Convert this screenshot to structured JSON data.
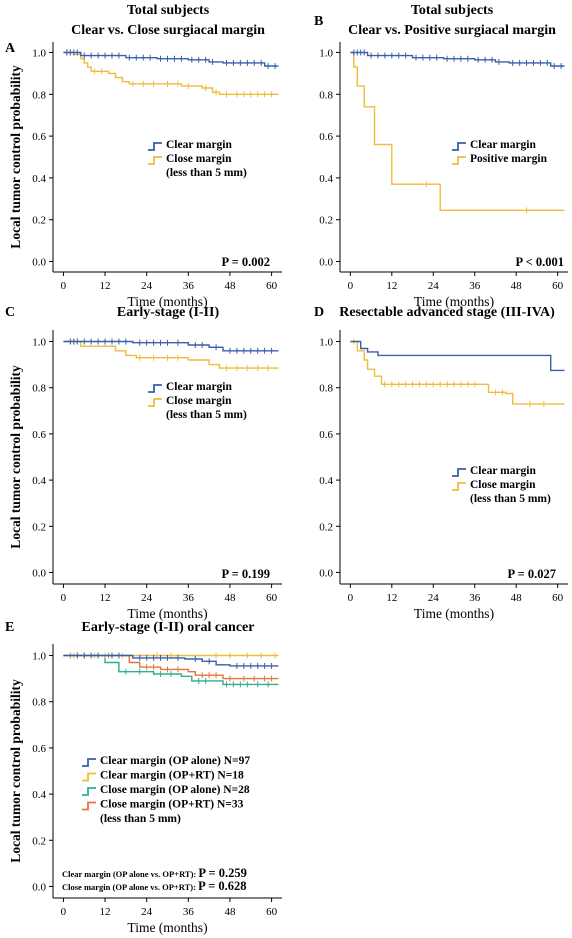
{
  "y_axis_label": "Local tumor control probability",
  "colors": {
    "blue": "#3a5fa8",
    "yellow": "#f0bc3c",
    "teal": "#2fae93",
    "orange": "#e8733c"
  },
  "chart_data": [
    {
      "id": "A",
      "panel": "A",
      "type": "line",
      "step": true,
      "title": "Total subjects",
      "subtitle": "Clear vs. Close surgiacal margin",
      "xlabel": "Time (months)",
      "xlim": [
        -3,
        63
      ],
      "ylim": [
        -0.05,
        1.05
      ],
      "xticks": [
        "0",
        "12",
        "24",
        "36",
        "48",
        "60"
      ],
      "yticks": [
        "0.0",
        "0.2",
        "0.4",
        "0.6",
        "0.8",
        "1.0"
      ],
      "legend": [
        "Clear margin",
        "Close margin",
        "(less than 5 mm)"
      ],
      "pvalue": "P = 0.002",
      "series": [
        {
          "name": "Clear margin",
          "color": "blue",
          "points": [
            [
              0,
              1
            ],
            [
              5,
              0.985
            ],
            [
              18,
              0.975
            ],
            [
              27,
              0.97
            ],
            [
              36,
              0.965
            ],
            [
              42,
              0.955
            ],
            [
              46,
              0.95
            ],
            [
              58,
              0.935
            ],
            [
              62,
              0.935
            ]
          ],
          "censors": [
            1,
            2,
            3,
            4,
            6,
            8,
            10,
            12,
            14,
            16,
            19,
            21,
            23,
            25,
            28,
            30,
            32,
            34,
            37,
            39,
            41,
            43,
            47,
            49,
            51,
            53,
            55,
            57,
            59,
            61
          ]
        },
        {
          "name": "Close margin",
          "color": "yellow",
          "points": [
            [
              0,
              1
            ],
            [
              3,
              0.99
            ],
            [
              5,
              0.97
            ],
            [
              6,
              0.95
            ],
            [
              7,
              0.93
            ],
            [
              8,
              0.91
            ],
            [
              13,
              0.9
            ],
            [
              15,
              0.88
            ],
            [
              17,
              0.86
            ],
            [
              19,
              0.85
            ],
            [
              34,
              0.84
            ],
            [
              40,
              0.83
            ],
            [
              43,
              0.81
            ],
            [
              45,
              0.8
            ],
            [
              48,
              0.8
            ],
            [
              62,
              0.8
            ]
          ],
          "censors": [
            1,
            2,
            9,
            11,
            20,
            23,
            26,
            30,
            33,
            36,
            41,
            44,
            47,
            50,
            52,
            54,
            56,
            58,
            60
          ]
        }
      ]
    },
    {
      "id": "B",
      "panel": "B",
      "type": "line",
      "step": true,
      "title": "Total subjects",
      "subtitle": "Clear vs. Positive surgiacal margin",
      "xlabel": "Time (months)",
      "xlim": [
        -3,
        63
      ],
      "ylim": [
        -0.05,
        1.05
      ],
      "xticks": [
        "0",
        "12",
        "24",
        "36",
        "48",
        "60"
      ],
      "yticks": [
        "0.0",
        "0.2",
        "0.4",
        "0.6",
        "0.8",
        "1.0"
      ],
      "legend": [
        "Clear margin",
        "Positive margin"
      ],
      "pvalue": "P < 0.001",
      "series": [
        {
          "name": "Clear margin",
          "color": "blue",
          "points": [
            [
              0,
              1
            ],
            [
              5,
              0.985
            ],
            [
              18,
              0.975
            ],
            [
              27,
              0.97
            ],
            [
              36,
              0.965
            ],
            [
              42,
              0.955
            ],
            [
              46,
              0.95
            ],
            [
              58,
              0.935
            ],
            [
              62,
              0.935
            ]
          ],
          "censors": [
            1,
            2,
            3,
            4,
            6,
            8,
            10,
            12,
            14,
            16,
            19,
            21,
            23,
            25,
            28,
            30,
            32,
            34,
            37,
            39,
            41,
            43,
            47,
            49,
            51,
            53,
            55,
            57,
            59,
            61
          ]
        },
        {
          "name": "Positive margin",
          "color": "yellow",
          "points": [
            [
              0,
              1
            ],
            [
              1,
              0.93
            ],
            [
              2,
              0.84
            ],
            [
              4,
              0.74
            ],
            [
              7,
              0.56
            ],
            [
              12,
              0.37
            ],
            [
              26,
              0.245
            ],
            [
              62,
              0.245
            ]
          ],
          "censors": [
            22,
            51
          ]
        }
      ]
    },
    {
      "id": "C",
      "panel": "C",
      "type": "line",
      "step": true,
      "title": "Early-stage (I-II)",
      "subtitle": "",
      "xlabel": "Time (months)",
      "xlim": [
        -3,
        63
      ],
      "ylim": [
        -0.05,
        1.05
      ],
      "xticks": [
        "0",
        "12",
        "24",
        "36",
        "48",
        "60"
      ],
      "yticks": [
        "0.0",
        "0.2",
        "0.4",
        "0.6",
        "0.8",
        "1.0"
      ],
      "legend": [
        "Clear margin",
        "Close margin",
        "(less than 5 mm)"
      ],
      "pvalue": "P = 0.199",
      "series": [
        {
          "name": "Clear margin",
          "color": "blue",
          "points": [
            [
              0,
              1
            ],
            [
              20,
              0.995
            ],
            [
              36,
              0.985
            ],
            [
              42,
              0.975
            ],
            [
              46,
              0.96
            ],
            [
              62,
              0.96
            ]
          ],
          "censors": [
            2,
            3,
            4,
            6,
            8,
            10,
            12,
            14,
            16,
            18,
            22,
            24,
            26,
            28,
            30,
            33,
            38,
            40,
            44,
            48,
            50,
            52,
            54,
            56,
            58,
            60
          ]
        },
        {
          "name": "Close margin",
          "color": "yellow",
          "points": [
            [
              0,
              1
            ],
            [
              5,
              0.98
            ],
            [
              15,
              0.96
            ],
            [
              18,
              0.94
            ],
            [
              21,
              0.93
            ],
            [
              36,
              0.92
            ],
            [
              42,
              0.9
            ],
            [
              45,
              0.885
            ],
            [
              62,
              0.885
            ]
          ],
          "censors": [
            2,
            3,
            22,
            26,
            30,
            33,
            47,
            50,
            53,
            56,
            59
          ]
        }
      ]
    },
    {
      "id": "D",
      "panel": "D",
      "type": "line",
      "step": true,
      "title": "Resectable advanced stage (III-IVA)",
      "subtitle": "",
      "xlabel": "Time (months)",
      "xlim": [
        -3,
        63
      ],
      "ylim": [
        -0.05,
        1.05
      ],
      "xticks": [
        "0",
        "12",
        "24",
        "36",
        "48",
        "60"
      ],
      "yticks": [
        "0.0",
        "0.2",
        "0.4",
        "0.6",
        "0.8",
        "1.0"
      ],
      "legend": [
        "Clear margin",
        "Close margin",
        "(less than 5 mm)"
      ],
      "pvalue": "P = 0.027",
      "series": [
        {
          "name": "Clear margin",
          "color": "blue",
          "points": [
            [
              0,
              1
            ],
            [
              3,
              0.97
            ],
            [
              5,
              0.955
            ],
            [
              8,
              0.94
            ],
            [
              57,
              0.94
            ],
            [
              58,
              0.875
            ],
            [
              62,
              0.875
            ]
          ],
          "censors": []
        },
        {
          "name": "Close margin",
          "color": "yellow",
          "points": [
            [
              0,
              1
            ],
            [
              2,
              0.96
            ],
            [
              4,
              0.92
            ],
            [
              5,
              0.88
            ],
            [
              7,
              0.85
            ],
            [
              9,
              0.815
            ],
            [
              37,
              0.815
            ],
            [
              40,
              0.78
            ],
            [
              45,
              0.775
            ],
            [
              47,
              0.73
            ],
            [
              62,
              0.73
            ]
          ],
          "censors": [
            1,
            10,
            12,
            14,
            16,
            18,
            20,
            22,
            24,
            26,
            28,
            30,
            32,
            34,
            36,
            42,
            44,
            52,
            56
          ]
        }
      ]
    },
    {
      "id": "E",
      "panel": "E",
      "type": "line",
      "step": true,
      "title": "Early-stage (I-II) oral cancer",
      "subtitle": "",
      "xlabel": "Time (months)",
      "xlim": [
        -3,
        63
      ],
      "ylim": [
        -0.05,
        1.05
      ],
      "xticks": [
        "0",
        "12",
        "24",
        "36",
        "48",
        "60"
      ],
      "yticks": [
        "0.0",
        "0.2",
        "0.4",
        "0.6",
        "0.8",
        "1.0"
      ],
      "legend": [
        "Clear margin (OP alone) N=97",
        "Clear margin (OP+RT) N=18",
        "Close margin (OP alone) N=28",
        "Close margin (OP+RT) N=33",
        "(less than 5 mm)"
      ],
      "pvalue_notes": [
        {
          "label": "Clear margin (OP alone vs. OP+RT):",
          "p": "P = 0.259"
        },
        {
          "label": "Close margin (OP alone vs. OP+RT):",
          "p": "P = 0.628"
        }
      ],
      "series": [
        {
          "name": "Clear margin (OP alone) N=97",
          "color": "blue",
          "points": [
            [
              0,
              1
            ],
            [
              20,
              0.99
            ],
            [
              35,
              0.985
            ],
            [
              40,
              0.975
            ],
            [
              44,
              0.96
            ],
            [
              48,
              0.955
            ],
            [
              62,
              0.955
            ]
          ],
          "censors": [
            4,
            6,
            8,
            10,
            14,
            16,
            22,
            24,
            26,
            28,
            30,
            33,
            38,
            42,
            50,
            52,
            54,
            56,
            58,
            60
          ]
        },
        {
          "name": "Clear margin (OP+RT) N=18",
          "color": "yellow",
          "points": [
            [
              0,
              1
            ],
            [
              62,
              1
            ]
          ],
          "censors": [
            3,
            9,
            12,
            17,
            27,
            31,
            44,
            48,
            53,
            57,
            61
          ]
        },
        {
          "name": "Close margin (OP alone) N=28",
          "color": "teal",
          "points": [
            [
              0,
              1
            ],
            [
              12,
              0.97
            ],
            [
              16,
              0.93
            ],
            [
              26,
              0.92
            ],
            [
              34,
              0.91
            ],
            [
              37,
              0.89
            ],
            [
              46,
              0.875
            ],
            [
              62,
              0.875
            ]
          ],
          "censors": [
            18,
            22,
            28,
            31,
            39,
            41,
            47,
            49,
            51,
            53,
            56,
            59
          ]
        },
        {
          "name": "Close margin (OP+RT) N=33",
          "color": "orange",
          "points": [
            [
              0,
              1
            ],
            [
              19,
              0.97
            ],
            [
              22,
              0.95
            ],
            [
              28,
              0.94
            ],
            [
              36,
              0.93
            ],
            [
              38,
              0.915
            ],
            [
              46,
              0.9
            ],
            [
              62,
              0.9
            ]
          ],
          "censors": [
            2,
            6,
            13,
            24,
            26,
            30,
            33,
            40,
            42,
            44,
            48,
            52,
            55,
            58,
            60
          ]
        }
      ]
    }
  ]
}
